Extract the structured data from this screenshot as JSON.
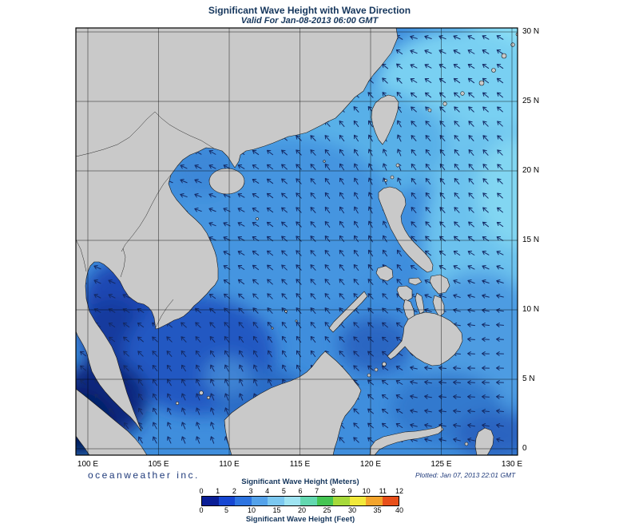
{
  "header": {
    "title": "Significant Wave Height with Wave Direction",
    "subtitle": "Valid For Jan-08-2013 06:00 GMT"
  },
  "map": {
    "lon_ticks": [
      "100 E",
      "105 E",
      "110 E",
      "115 E",
      "120 E",
      "125 E",
      "130 E"
    ],
    "lat_ticks": [
      "30 N",
      "25 N",
      "20 N",
      "15 N",
      "10 N",
      "5 N",
      "0"
    ],
    "arrow_color": "#142a66",
    "arrow_spacing": 18,
    "land_color": "#c9c9c9",
    "ocean_base_color": "#3f8edd"
  },
  "footer": {
    "brand": "oceanweather inc.",
    "plotted": "Plotted: Jan 07, 2013 22:01 GMT"
  },
  "legend": {
    "meters_title": "Significant Wave Height (Meters)",
    "feet_title": "Significant Wave Height (Feet)",
    "meters_ticks": [
      "0",
      "1",
      "2",
      "3",
      "4",
      "5",
      "6",
      "7",
      "8",
      "9",
      "10",
      "11",
      "12"
    ],
    "feet_ticks": [
      "0",
      "5",
      "10",
      "15",
      "20",
      "25",
      "30",
      "35",
      "40"
    ],
    "colors": [
      "#0a1e96",
      "#1747d2",
      "#2e74e0",
      "#54a2ea",
      "#7cc8f0",
      "#9fe4f2",
      "#63d8b0",
      "#45c553",
      "#a6d93a",
      "#f2e93a",
      "#f4a42c",
      "#e84f1a"
    ]
  }
}
